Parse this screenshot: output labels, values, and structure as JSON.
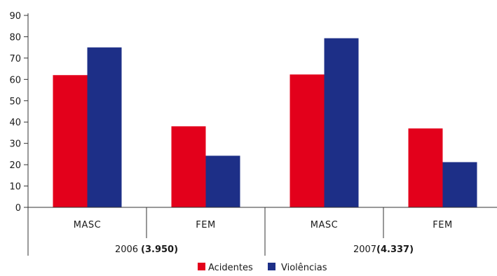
{
  "chart_data": {
    "type": "bar",
    "ylim": [
      0,
      90
    ],
    "yticks": [
      0,
      10,
      20,
      30,
      40,
      50,
      60,
      70,
      80,
      90
    ],
    "grid": false,
    "legend_placement": "bottom-center",
    "categories": [
      "MASC",
      "FEM",
      "MASC",
      "FEM"
    ],
    "groups": [
      {
        "label": "2006",
        "total": "(3.950)",
        "categories": [
          "MASC",
          "FEM"
        ]
      },
      {
        "label": "2007",
        "total": "(4.337)",
        "categories": [
          "MASC",
          "FEM"
        ]
      }
    ],
    "series": [
      {
        "name": "Acidentes",
        "color": "#e3001b",
        "values": [
          62,
          38,
          62.3,
          37
        ]
      },
      {
        "name": "Violências",
        "color": "#1d2f87",
        "values": [
          75,
          24.2,
          79.3,
          21.2
        ]
      }
    ]
  }
}
